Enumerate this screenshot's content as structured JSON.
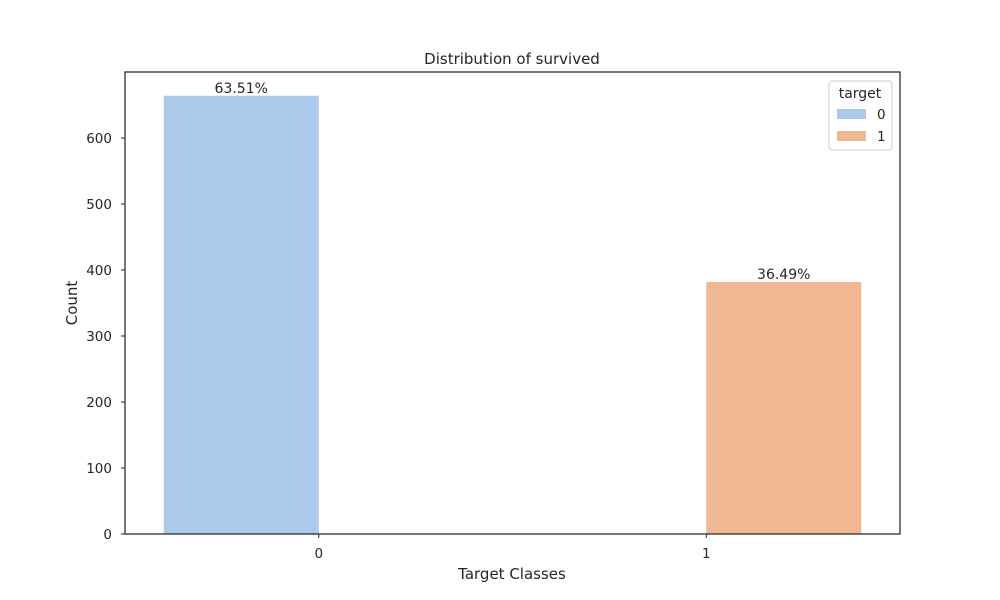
{
  "chart_data": {
    "type": "bar",
    "title": "Distribution of survived",
    "xlabel": "Target Classes",
    "ylabel": "Count",
    "categories": [
      "0",
      "1"
    ],
    "series": [
      {
        "name": "0",
        "color": "#abc9ea",
        "values": [
          664,
          null
        ],
        "labels": [
          "63.51%",
          null
        ]
      },
      {
        "name": "1",
        "color": "#efb792",
        "values": [
          null,
          382
        ],
        "labels": [
          null,
          "36.49%"
        ]
      }
    ],
    "yticks": [
      0,
      100,
      200,
      300,
      400,
      500,
      600
    ],
    "ylim": [
      0,
      700
    ],
    "grid": false,
    "legend": {
      "title": "target",
      "placement": "top-right"
    }
  }
}
